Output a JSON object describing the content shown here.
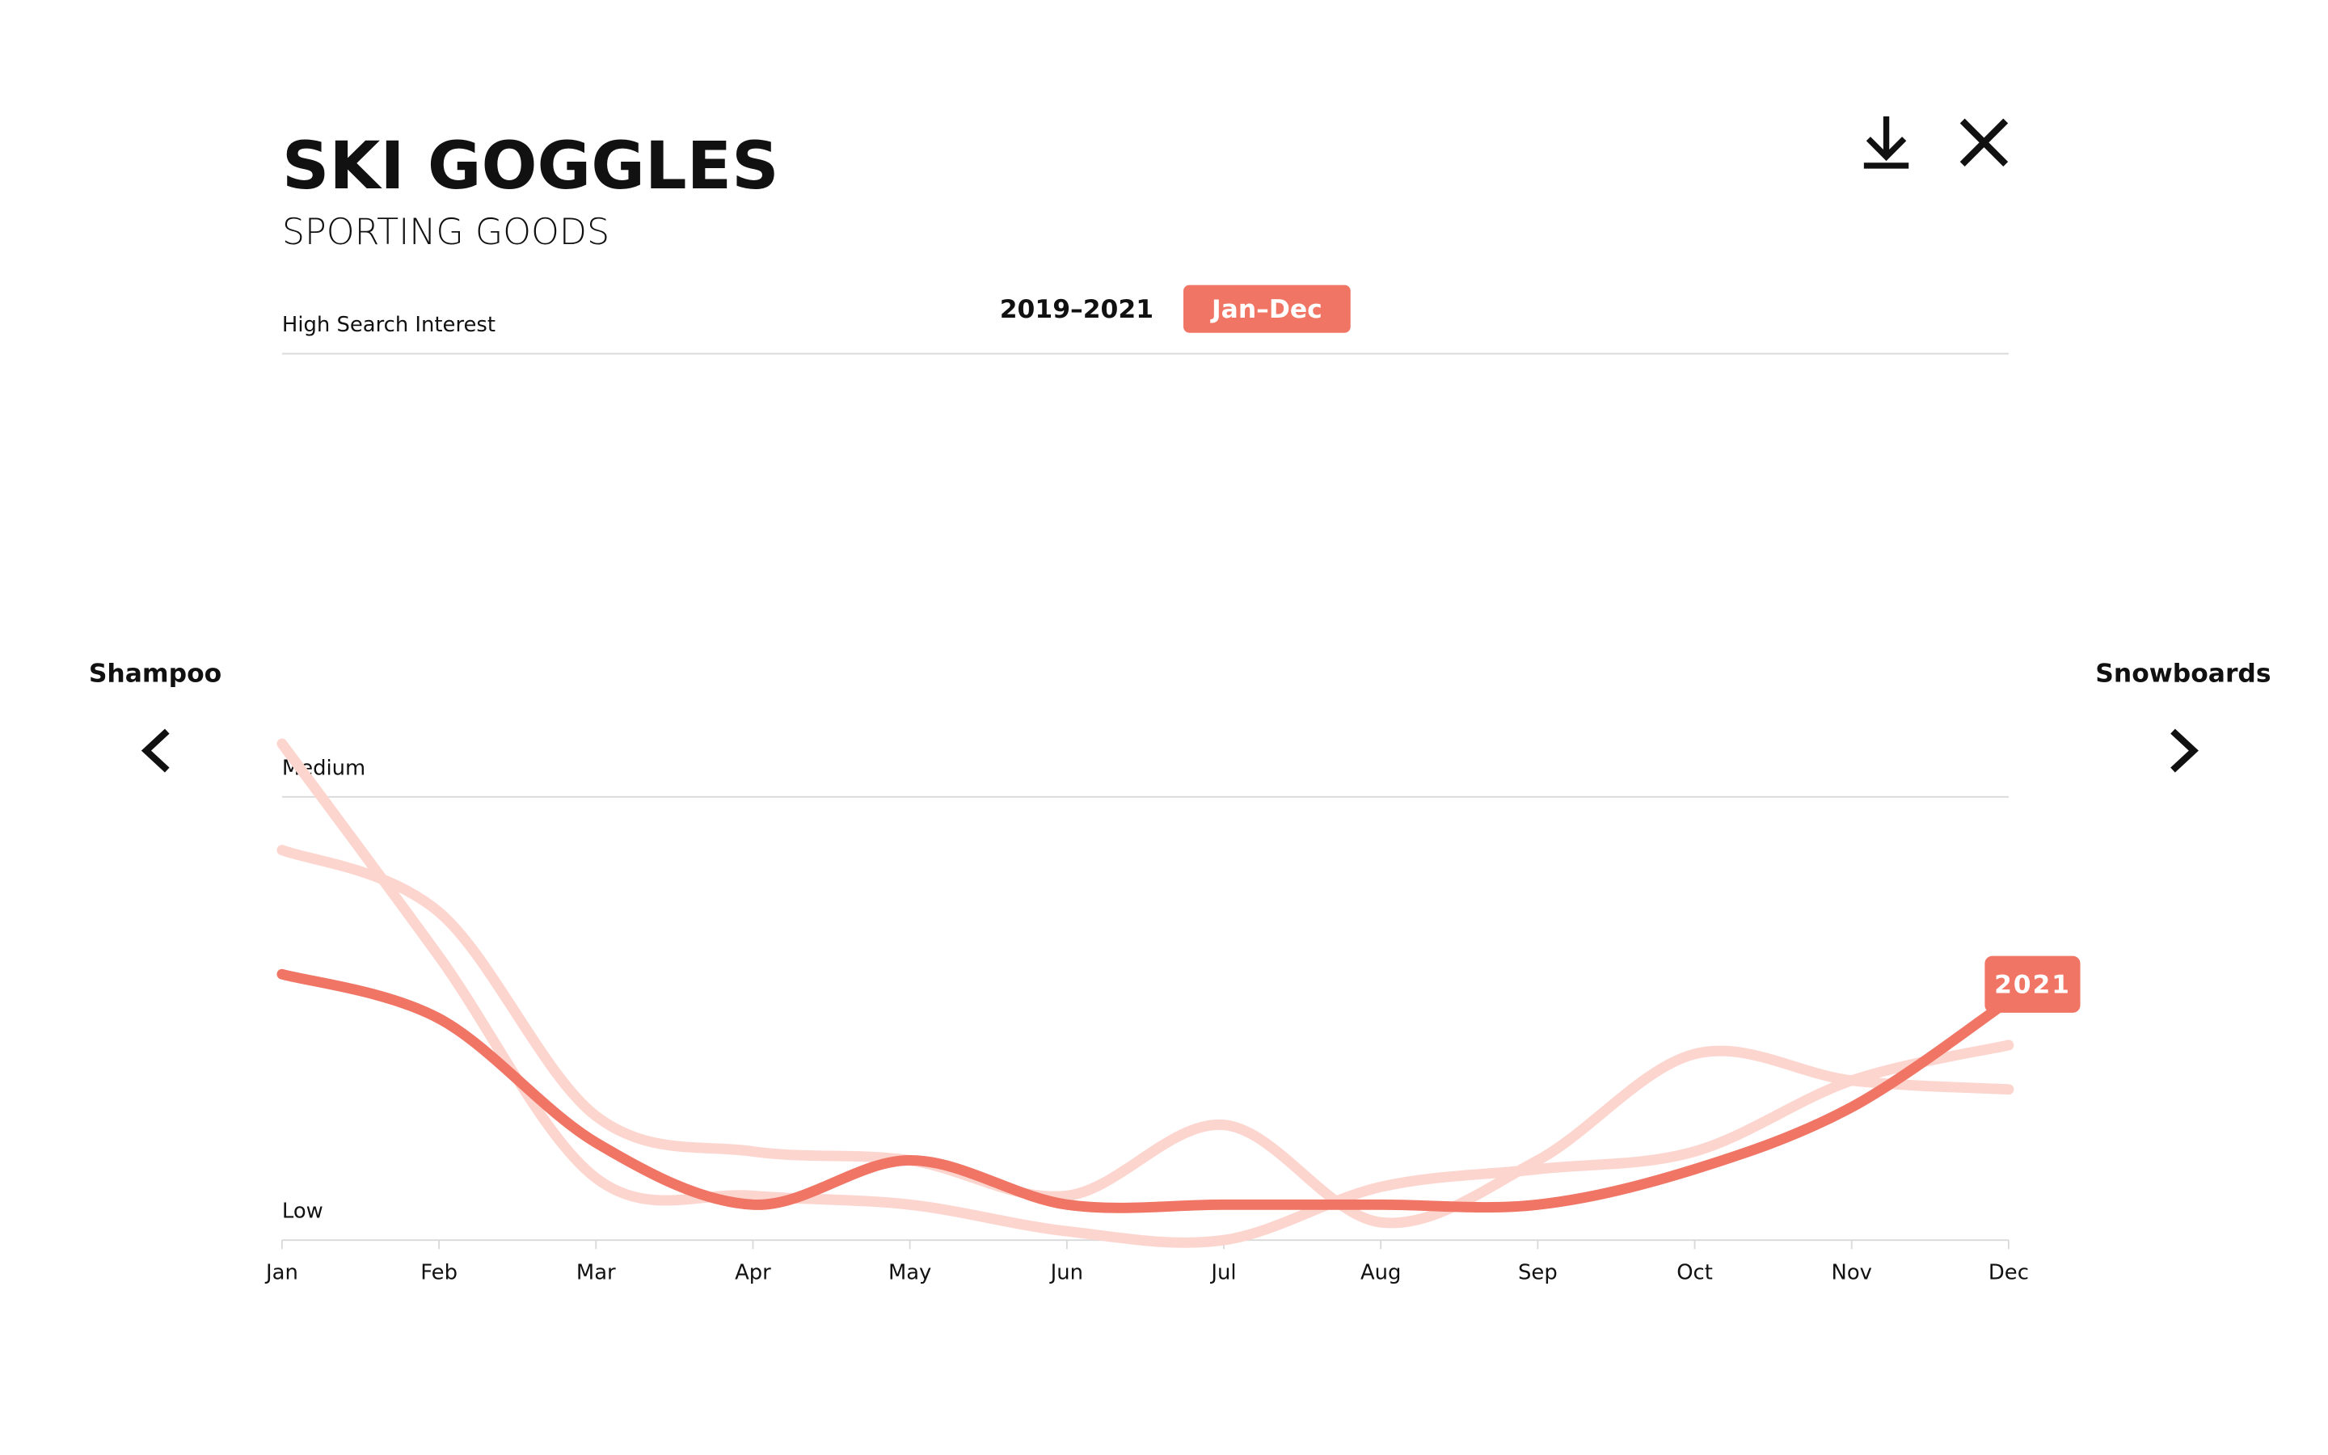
{
  "chart_data": {
    "type": "line",
    "title": "SKI GOGGLES",
    "subtitle": "SPORTING GOODS",
    "period": "2019–2021",
    "range": "Jan–Dec",
    "categories": [
      "Jan",
      "Feb",
      "Mar",
      "Apr",
      "May",
      "Jun",
      "Jul",
      "Aug",
      "Sep",
      "Oct",
      "Nov",
      "Dec"
    ],
    "series": [
      {
        "color": "#fdd5cf",
        "values": [
          56,
          32,
          7,
          5,
          4,
          1,
          0,
          6,
          8,
          10,
          18,
          22
        ]
      },
      {
        "color": "#fdd5cf",
        "values": [
          44,
          37,
          14,
          10,
          9,
          5,
          13,
          2,
          9,
          21,
          18,
          17
        ]
      },
      {
        "name": "2021",
        "color": "#f07565",
        "values": [
          30,
          25,
          11,
          4,
          9,
          4,
          4,
          4,
          4,
          8,
          15,
          27
        ]
      }
    ],
    "ylim": [
      0,
      100
    ],
    "yticks": [
      {
        "value": 0,
        "label": "Low"
      },
      {
        "value": 50,
        "label": "Medium"
      },
      {
        "value": 100,
        "label": "High Search Interest"
      }
    ],
    "grid": true
  },
  "nav": {
    "prev": "Shampoo",
    "next": "Snowboards"
  }
}
